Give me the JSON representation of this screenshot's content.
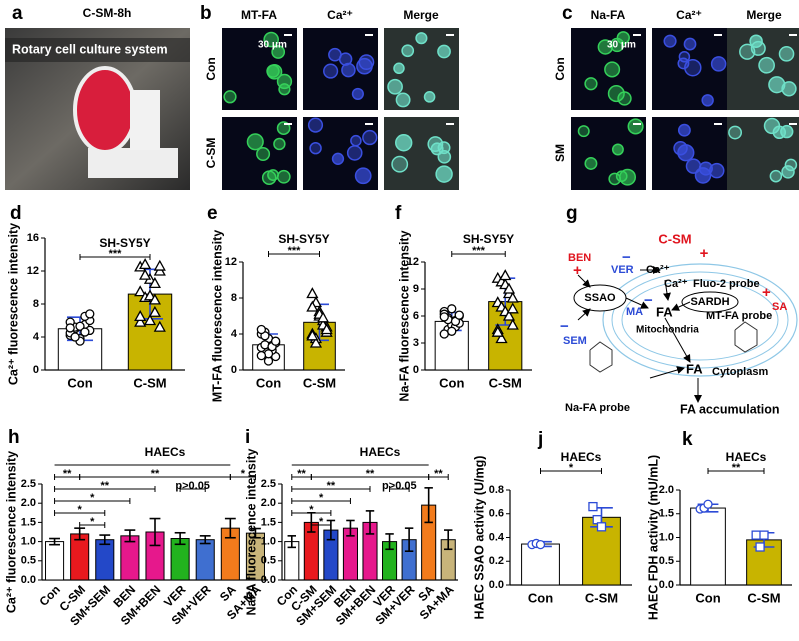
{
  "panel_a": {
    "label": "a",
    "title": "C-SM-8h",
    "caption": "Rotary cell culture system"
  },
  "panel_b": {
    "label": "b",
    "columns": [
      "MT-FA",
      "Ca²⁺",
      "Merge"
    ],
    "rows": [
      "Con",
      "C-SM"
    ],
    "scale_bar": "30 μm"
  },
  "panel_c": {
    "label": "c",
    "columns": [
      "Na-FA",
      "Ca²⁺",
      "Merge"
    ],
    "rows": [
      "Con",
      "SM"
    ],
    "scale_bar": "30 μm"
  },
  "panel_g": {
    "label": "g",
    "labels": [
      "C-SM",
      "+",
      "BEN",
      "+",
      "VER",
      "−",
      "Ca²⁺",
      "Ca²⁺",
      "Fluo-2 probe",
      "SARDH",
      "+",
      "SA",
      "SSAO",
      "MA",
      "−",
      "FA",
      "MT-FA probe",
      "Mitochondria",
      "−",
      "SEM",
      "FA",
      "Cytoplasm",
      "Na-FA probe",
      "FA accumulation"
    ]
  },
  "chart_data": [
    {
      "type": "bar",
      "panel": "d",
      "title": "SH-SY5Y",
      "y_label": "Ca²⁺ fluorescence intensity",
      "categories": [
        "Con",
        "C-SM"
      ],
      "values": [
        5.0,
        9.2
      ],
      "errors": [
        1.4,
        3.0
      ],
      "colors": [
        "#ffffff",
        "#c8b400"
      ],
      "error_color": "#2c4bd6",
      "marker_color": "#000000",
      "markers": [
        "circle",
        "triangle"
      ],
      "points": [
        [
          4.2,
          5.0,
          3.8,
          5.5,
          6.0,
          4.5,
          5.2,
          3.5,
          6.5,
          4.8,
          5.8,
          4.0,
          5.3,
          4.6,
          6.8,
          5.1
        ],
        [
          12.5,
          12.8,
          11.0,
          10.5,
          12.0,
          9.5,
          8.8,
          6.0,
          7.0,
          5.2,
          5.8,
          11.5,
          9.0,
          8.5,
          12.6,
          6.5
        ]
      ],
      "ylim": [
        0,
        16
      ],
      "yticks": [
        0,
        4,
        8,
        12,
        16
      ],
      "brackets": [
        {
          "from": "Con",
          "to": "C-SM",
          "label": "***"
        }
      ]
    },
    {
      "type": "bar",
      "panel": "e",
      "title": "SH-SY5Y",
      "y_label": "MT-FA fluorescence intensity",
      "categories": [
        "Con",
        "C-SM"
      ],
      "values": [
        2.8,
        5.3
      ],
      "errors": [
        1.2,
        2.0
      ],
      "colors": [
        "#ffffff",
        "#c8b400"
      ],
      "error_color": "#2c4bd6",
      "marker_color": "#000000",
      "markers": [
        "circle",
        "triangle"
      ],
      "points": [
        [
          4.0,
          4.2,
          3.5,
          2.0,
          1.5,
          2.5,
          3.8,
          1.0,
          2.2,
          3.0,
          4.5,
          2.8,
          1.8,
          2.6,
          3.2,
          1.6
        ],
        [
          8.5,
          7.5,
          6.0,
          5.5,
          4.8,
          4.0,
          3.5,
          6.5,
          5.0,
          4.2,
          7.0,
          3.0,
          6.2,
          5.8,
          4.5,
          3.8
        ]
      ],
      "ylim": [
        0,
        12
      ],
      "yticks": [
        0,
        4,
        8,
        12
      ],
      "brackets": [
        {
          "from": "Con",
          "to": "C-SM",
          "label": "***"
        }
      ]
    },
    {
      "type": "bar",
      "panel": "f",
      "title": "SH-SY5Y",
      "y_label": "Na-FA fluorescence intensity",
      "categories": [
        "Con",
        "C-SM"
      ],
      "values": [
        5.4,
        7.6
      ],
      "errors": [
        1.0,
        2.6
      ],
      "colors": [
        "#ffffff",
        "#c8b400"
      ],
      "error_color": "#2c4bd6",
      "marker_color": "#000000",
      "markers": [
        "circle",
        "triangle"
      ],
      "points": [
        [
          6.5,
          4.5,
          5.0,
          5.5,
          6.0,
          4.0,
          5.8,
          6.8,
          4.8,
          5.2,
          6.2,
          5.6,
          4.3,
          5.4,
          6.1,
          5.9
        ],
        [
          10.2,
          9.8,
          9.5,
          8.5,
          8.0,
          7.5,
          7.0,
          6.5,
          6.0,
          5.0,
          4.5,
          3.5,
          10.5,
          9.0,
          6.8,
          4.2
        ]
      ],
      "ylim": [
        0,
        12
      ],
      "yticks": [
        0,
        3,
        6,
        9,
        12
      ],
      "brackets": [
        {
          "from": "Con",
          "to": "C-SM",
          "label": "***"
        }
      ]
    },
    {
      "type": "bar",
      "panel": "h",
      "title": "HAECs",
      "y_label": "Ca²⁺ fluorescence intensity",
      "categories": [
        "Con",
        "C-SM",
        "SM+SEM",
        "BEN",
        "SM+BEN",
        "VER",
        "SM+VER",
        "SA",
        "SA+MA"
      ],
      "values": [
        1.0,
        1.2,
        1.05,
        1.15,
        1.25,
        1.08,
        1.05,
        1.35,
        1.22
      ],
      "errors": [
        0.08,
        0.15,
        0.12,
        0.15,
        0.35,
        0.15,
        0.1,
        0.25,
        0.12
      ],
      "colors": [
        "#ffffff",
        "#e8191e",
        "#2348c8",
        "#e6188c",
        "#e6188c",
        "#22b21e",
        "#3f6fd0",
        "#f27b1c",
        "#c8b47a"
      ],
      "error_color": "#000000",
      "ylim": [
        0,
        2.5
      ],
      "yticks": [
        {
          "value": 0,
          "label": "0.0"
        },
        0.5,
        {
          "value": 1,
          "label": "1.0"
        },
        1.5,
        {
          "value": 2,
          "label": "2.0"
        },
        2.5
      ],
      "brackets": [
        {
          "from": "C-SM",
          "to": "SA",
          "label": "**"
        },
        {
          "from": "SA",
          "to": "SA+MA",
          "label": "*"
        },
        {
          "from": "Con",
          "to": "SM+BEN",
          "label": "**"
        },
        {
          "from": "Con",
          "to": "BEN",
          "label": "*"
        },
        {
          "from": "VER",
          "to": "SM+VER",
          "label": "p>0.05"
        },
        {
          "from": "Con",
          "to": "SM+SEM",
          "label": "*"
        },
        {
          "from": "Con",
          "to": "C-SM",
          "label": "**"
        },
        {
          "from": "C-SM",
          "to": "SM+SEM",
          "label": "*"
        }
      ]
    },
    {
      "type": "bar",
      "panel": "i",
      "title": "HAECs",
      "y_label": "NaFA fluorescence intensity",
      "categories": [
        "Con",
        "C-SM",
        "SM+SEM",
        "BEN",
        "SM+BEN",
        "VER",
        "SM+VER",
        "SA",
        "SA+MA"
      ],
      "values": [
        1.0,
        1.5,
        1.3,
        1.35,
        1.5,
        1.0,
        1.05,
        1.95,
        1.05
      ],
      "errors": [
        0.15,
        0.25,
        0.25,
        0.2,
        0.3,
        0.2,
        0.3,
        0.45,
        0.25
      ],
      "colors": [
        "#ffffff",
        "#e8191e",
        "#2348c8",
        "#e6188c",
        "#e6188c",
        "#22b21e",
        "#3f6fd0",
        "#f27b1c",
        "#c8b47a"
      ],
      "error_color": "#000000",
      "ylim": [
        0,
        2.5
      ],
      "yticks": [
        {
          "value": 0,
          "label": "0.0"
        },
        0.5,
        {
          "value": 1,
          "label": "1.0"
        },
        1.5,
        {
          "value": 2,
          "label": "2.0"
        },
        2.5
      ],
      "brackets": [
        {
          "from": "C-SM",
          "to": "SA",
          "label": "**"
        },
        {
          "from": "SA",
          "to": "SA+MA",
          "label": "**"
        },
        {
          "from": "Con",
          "to": "SM+BEN",
          "label": "**"
        },
        {
          "from": "Con",
          "to": "BEN",
          "label": "*"
        },
        {
          "from": "VER",
          "to": "SM+VER",
          "label": "p>0.05"
        },
        {
          "from": "Con",
          "to": "SM+SEM",
          "label": "*"
        },
        {
          "from": "Con",
          "to": "C-SM",
          "label": "**"
        },
        {
          "from": "C-SM",
          "to": "SM+SEM",
          "label": "*"
        }
      ]
    },
    {
      "type": "bar",
      "panel": "j",
      "title": "HAECs",
      "y_label": "HAEC SSAO activity (U/mg)",
      "categories": [
        "Con",
        "C-SM"
      ],
      "values": [
        0.345,
        0.57
      ],
      "errors": [
        0.02,
        0.08
      ],
      "colors": [
        "#ffffff",
        "#c8b400"
      ],
      "error_color": "#2c4bd6",
      "marker_color": "#2c4bd6",
      "markers": [
        "circle",
        "square"
      ],
      "points": [
        [
          0.34,
          0.35,
          0.34
        ],
        [
          0.66,
          0.55,
          0.49
        ]
      ],
      "ylim": [
        0,
        0.8
      ],
      "yticks": [
        {
          "value": 0,
          "label": "0.0"
        },
        0.2,
        0.4,
        0.6,
        0.8
      ],
      "brackets": [
        {
          "from": "Con",
          "to": "C-SM",
          "label": "*"
        }
      ]
    },
    {
      "type": "bar",
      "panel": "k",
      "title": "HAECs",
      "y_label": "HAEC FDH activity (mU/mL)",
      "categories": [
        "Con",
        "C-SM"
      ],
      "values": [
        1.62,
        0.95
      ],
      "errors": [
        0.08,
        0.15
      ],
      "colors": [
        "#ffffff",
        "#c8b400"
      ],
      "error_color": "#2c4bd6",
      "marker_color": "#2c4bd6",
      "markers": [
        "circle",
        "square"
      ],
      "points": [
        [
          1.6,
          1.62,
          1.7
        ],
        [
          1.05,
          0.8,
          1.05
        ]
      ],
      "ylim": [
        0,
        2.0
      ],
      "yticks": [
        {
          "value": 0,
          "label": "0.0"
        },
        0.5,
        {
          "value": 1,
          "label": "1.0"
        },
        1.5,
        {
          "value": 2,
          "label": "2.0"
        }
      ],
      "brackets": [
        {
          "from": "Con",
          "to": "C-SM",
          "label": "**"
        }
      ]
    }
  ]
}
